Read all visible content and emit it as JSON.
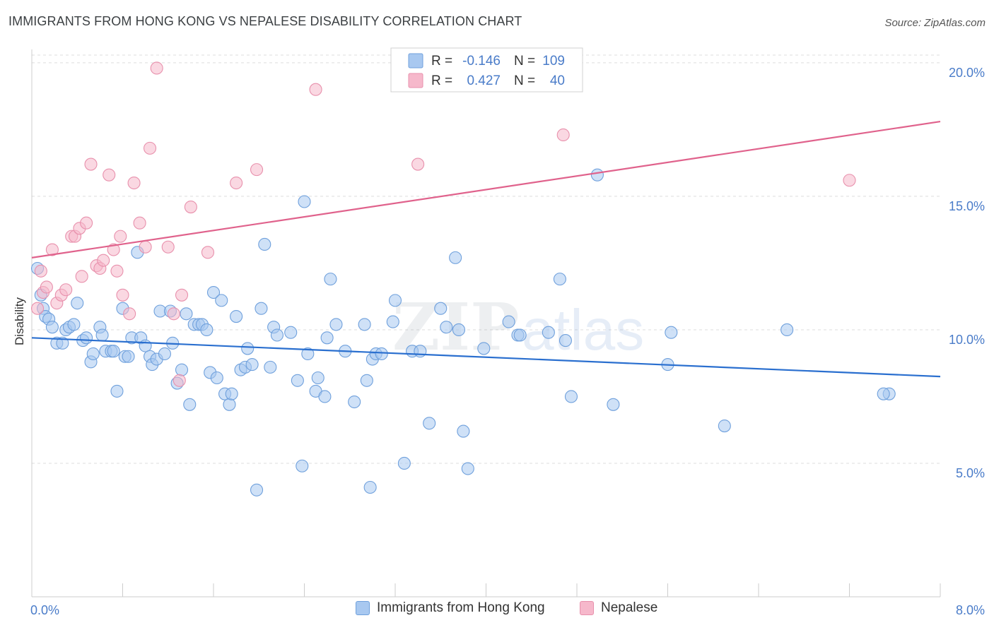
{
  "title": "IMMIGRANTS FROM HONG KONG VS NEPALESE DISABILITY CORRELATION CHART",
  "source": "Source: ZipAtlas.com",
  "watermark": {
    "zip": "ZIP",
    "atlas": "atlas"
  },
  "colors": {
    "blue_fill": "#a8c8f0",
    "blue_stroke": "#6fa0dc",
    "blue_line": "#2a6fcf",
    "pink_fill": "#f6b8cb",
    "pink_stroke": "#e890ac",
    "pink_line": "#e0628c",
    "axis_label": "#4a7cc9",
    "grid": "#dddddd"
  },
  "legend": {
    "r_label": "R =",
    "n_label": "N =",
    "rows": [
      {
        "series": "blue",
        "r": "-0.146",
        "n": "109"
      },
      {
        "series": "pink",
        "r": "0.427",
        "n": "40"
      }
    ]
  },
  "chart_data": {
    "type": "scatter",
    "xlabel": "",
    "ylabel": "Disability",
    "xlim": [
      0,
      8
    ],
    "ylim": [
      0,
      20.5
    ],
    "x_tick_labels": {
      "min": "0.0%",
      "max": "8.0%"
    },
    "y_ticks": [
      {
        "value": 5,
        "label": "5.0%"
      },
      {
        "value": 10,
        "label": "10.0%"
      },
      {
        "value": 15,
        "label": "15.0%"
      },
      {
        "value": 20,
        "label": "20.0%"
      }
    ],
    "grid": true,
    "legend_position": "top-center",
    "series": [
      {
        "name": "Immigrants from Hong Kong",
        "color": "blue",
        "trend": {
          "x": [
            0,
            8
          ],
          "y": [
            9.7,
            8.25
          ]
        },
        "points": [
          [
            0.05,
            12.3
          ],
          [
            0.08,
            11.3
          ],
          [
            0.1,
            10.8
          ],
          [
            0.12,
            10.5
          ],
          [
            0.15,
            10.4
          ],
          [
            0.18,
            10.1
          ],
          [
            0.22,
            9.5
          ],
          [
            0.27,
            9.5
          ],
          [
            0.3,
            10.0
          ],
          [
            0.33,
            10.1
          ],
          [
            0.37,
            10.2
          ],
          [
            0.4,
            11.0
          ],
          [
            0.45,
            9.6
          ],
          [
            0.48,
            9.7
          ],
          [
            0.52,
            8.8
          ],
          [
            0.54,
            9.1
          ],
          [
            0.6,
            10.1
          ],
          [
            0.62,
            9.8
          ],
          [
            0.65,
            9.2
          ],
          [
            0.7,
            9.2
          ],
          [
            0.72,
            9.2
          ],
          [
            0.75,
            7.7
          ],
          [
            0.8,
            10.8
          ],
          [
            0.82,
            9.0
          ],
          [
            0.85,
            9.0
          ],
          [
            0.88,
            9.7
          ],
          [
            0.93,
            12.9
          ],
          [
            0.96,
            9.7
          ],
          [
            1.0,
            9.4
          ],
          [
            1.04,
            9.0
          ],
          [
            1.06,
            8.7
          ],
          [
            1.1,
            8.9
          ],
          [
            1.13,
            10.7
          ],
          [
            1.17,
            9.1
          ],
          [
            1.22,
            10.7
          ],
          [
            1.24,
            9.5
          ],
          [
            1.28,
            8.0
          ],
          [
            1.32,
            8.5
          ],
          [
            1.36,
            10.6
          ],
          [
            1.39,
            7.2
          ],
          [
            1.43,
            10.2
          ],
          [
            1.47,
            10.2
          ],
          [
            1.5,
            10.2
          ],
          [
            1.54,
            10.0
          ],
          [
            1.57,
            8.4
          ],
          [
            1.6,
            11.4
          ],
          [
            1.63,
            8.2
          ],
          [
            1.67,
            11.1
          ],
          [
            1.7,
            7.6
          ],
          [
            1.74,
            7.2
          ],
          [
            1.76,
            7.6
          ],
          [
            1.8,
            10.5
          ],
          [
            1.84,
            8.5
          ],
          [
            1.88,
            8.6
          ],
          [
            1.9,
            9.3
          ],
          [
            1.94,
            8.7
          ],
          [
            1.98,
            4.0
          ],
          [
            2.02,
            10.8
          ],
          [
            2.05,
            13.2
          ],
          [
            2.1,
            8.6
          ],
          [
            2.13,
            10.1
          ],
          [
            2.16,
            9.8
          ],
          [
            2.28,
            9.9
          ],
          [
            2.34,
            8.1
          ],
          [
            2.38,
            4.9
          ],
          [
            2.4,
            14.8
          ],
          [
            2.43,
            9.1
          ],
          [
            2.5,
            7.7
          ],
          [
            2.52,
            8.2
          ],
          [
            2.58,
            7.5
          ],
          [
            2.6,
            9.7
          ],
          [
            2.63,
            11.9
          ],
          [
            2.68,
            10.2
          ],
          [
            2.76,
            9.2
          ],
          [
            2.84,
            7.3
          ],
          [
            2.93,
            10.2
          ],
          [
            2.95,
            8.1
          ],
          [
            2.98,
            4.1
          ],
          [
            3.0,
            8.9
          ],
          [
            3.03,
            9.1
          ],
          [
            3.08,
            9.1
          ],
          [
            3.18,
            10.3
          ],
          [
            3.2,
            11.1
          ],
          [
            3.28,
            5.0
          ],
          [
            3.35,
            9.2
          ],
          [
            3.42,
            9.2
          ],
          [
            3.5,
            6.5
          ],
          [
            3.6,
            10.8
          ],
          [
            3.65,
            10.1
          ],
          [
            3.73,
            12.7
          ],
          [
            3.76,
            10.0
          ],
          [
            3.8,
            6.2
          ],
          [
            3.84,
            4.8
          ],
          [
            3.98,
            9.3
          ],
          [
            4.2,
            10.3
          ],
          [
            4.28,
            9.8
          ],
          [
            4.3,
            9.8
          ],
          [
            4.55,
            9.9
          ],
          [
            4.65,
            11.9
          ],
          [
            4.7,
            9.6
          ],
          [
            4.75,
            7.5
          ],
          [
            4.98,
            15.8
          ],
          [
            5.12,
            7.2
          ],
          [
            5.6,
            8.7
          ],
          [
            5.63,
            9.9
          ],
          [
            6.1,
            6.4
          ],
          [
            6.65,
            10.0
          ],
          [
            7.55,
            7.6
          ],
          [
            7.5,
            7.6
          ]
        ]
      },
      {
        "name": "Nepalese",
        "color": "pink",
        "trend": {
          "x": [
            0,
            8
          ],
          "y": [
            12.7,
            17.8
          ]
        },
        "points": [
          [
            0.05,
            10.8
          ],
          [
            0.08,
            12.2
          ],
          [
            0.1,
            11.4
          ],
          [
            0.13,
            11.6
          ],
          [
            0.18,
            13.0
          ],
          [
            0.22,
            11.0
          ],
          [
            0.26,
            11.3
          ],
          [
            0.3,
            11.5
          ],
          [
            0.35,
            13.5
          ],
          [
            0.38,
            13.5
          ],
          [
            0.42,
            13.8
          ],
          [
            0.44,
            12.0
          ],
          [
            0.48,
            14.0
          ],
          [
            0.52,
            16.2
          ],
          [
            0.57,
            12.4
          ],
          [
            0.6,
            12.3
          ],
          [
            0.63,
            12.6
          ],
          [
            0.68,
            15.8
          ],
          [
            0.72,
            13.0
          ],
          [
            0.75,
            12.2
          ],
          [
            0.78,
            13.5
          ],
          [
            0.8,
            11.3
          ],
          [
            0.86,
            10.6
          ],
          [
            0.9,
            15.5
          ],
          [
            0.95,
            14.0
          ],
          [
            1.0,
            13.1
          ],
          [
            1.04,
            16.8
          ],
          [
            1.1,
            19.8
          ],
          [
            1.2,
            13.1
          ],
          [
            1.25,
            10.6
          ],
          [
            1.3,
            8.1
          ],
          [
            1.32,
            11.3
          ],
          [
            1.4,
            14.6
          ],
          [
            1.55,
            12.9
          ],
          [
            1.8,
            15.5
          ],
          [
            1.98,
            16.0
          ],
          [
            2.5,
            19.0
          ],
          [
            3.4,
            16.2
          ],
          [
            4.68,
            17.3
          ],
          [
            7.2,
            15.6
          ]
        ]
      }
    ]
  }
}
